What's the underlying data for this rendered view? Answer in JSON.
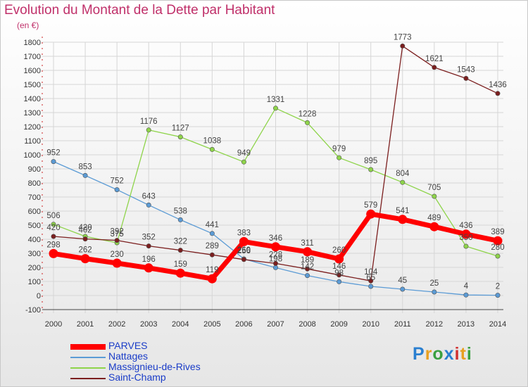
{
  "header": {
    "title": "Evolution du Montant de la Dette par Habitant",
    "subtitle": "(en €)"
  },
  "logo": {
    "text": "Proxiti"
  },
  "chart_data": {
    "type": "line",
    "title": "Evolution du Montant de la Dette par Habitant",
    "ylabel": "(en €)",
    "xlabel": "",
    "x": [
      "2000",
      "2001",
      "2002",
      "2003",
      "2004",
      "2005",
      "2006",
      "2007",
      "2008",
      "2009",
      "2010",
      "2011",
      "2012",
      "2013",
      "2014"
    ],
    "ylim": [
      -100,
      1800
    ],
    "yticks": [
      -100,
      0,
      100,
      200,
      300,
      400,
      500,
      600,
      700,
      800,
      900,
      1000,
      1100,
      1200,
      1300,
      1400,
      1500,
      1600,
      1700,
      1800
    ],
    "grid": true,
    "legend_position": "bottom-left",
    "series": [
      {
        "name": "PARVES",
        "color": "#ff0000",
        "values": [
          298,
          262,
          230,
          196,
          159,
          119,
          383,
          346,
          311,
          260,
          579,
          541,
          489,
          436,
          389
        ]
      },
      {
        "name": "Nattages",
        "color": "#5b9bd5",
        "values": [
          952,
          853,
          752,
          643,
          538,
          441,
          260,
          198,
          142,
          98,
          65,
          45,
          25,
          4,
          2
        ]
      },
      {
        "name": "Massignieu-de-Rives",
        "color": "#8ed44a",
        "values": [
          506,
          420,
          375,
          1176,
          1127,
          1038,
          949,
          1331,
          1228,
          979,
          895,
          804,
          705,
          350,
          280
        ]
      },
      {
        "name": "Saint-Champ",
        "color": "#7b1e1e",
        "values": [
          420,
          402,
          392,
          352,
          322,
          289,
          256,
          228,
          189,
          146,
          104,
          1773,
          1621,
          1543,
          1436
        ]
      }
    ]
  }
}
